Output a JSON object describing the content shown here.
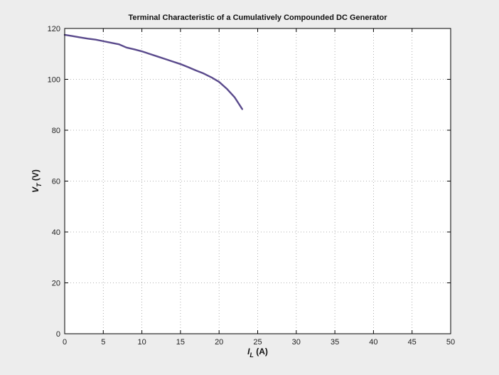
{
  "chart_data": {
    "type": "line",
    "title": "Terminal Characteristic of a Cumulatively Compounded DC Generator",
    "xlabel": {
      "main": "I",
      "sub": "L",
      "unit": " (A)"
    },
    "ylabel": {
      "main": "V",
      "sub": "T",
      "unit": " (V)"
    },
    "xlim": [
      0,
      50
    ],
    "ylim": [
      0,
      120
    ],
    "xticks": [
      0,
      5,
      10,
      15,
      20,
      25,
      30,
      35,
      40,
      45,
      50
    ],
    "yticks": [
      0,
      20,
      40,
      60,
      80,
      100,
      120
    ],
    "grid": true,
    "series": [
      {
        "color": "#5a4a8c",
        "x": [
          0,
          1,
          2,
          3,
          4,
          5,
          6,
          7,
          8,
          9,
          10,
          11,
          12,
          13,
          14,
          15,
          16,
          17,
          18,
          19,
          20,
          21,
          22,
          23
        ],
        "y": [
          117.5,
          117.0,
          116.5,
          116.0,
          115.6,
          115.0,
          114.4,
          113.8,
          112.5,
          111.8,
          111.0,
          110.0,
          109.0,
          108.0,
          107.0,
          106.0,
          104.8,
          103.5,
          102.3,
          100.8,
          99.0,
          96.3,
          93.0,
          88.3
        ]
      }
    ]
  }
}
